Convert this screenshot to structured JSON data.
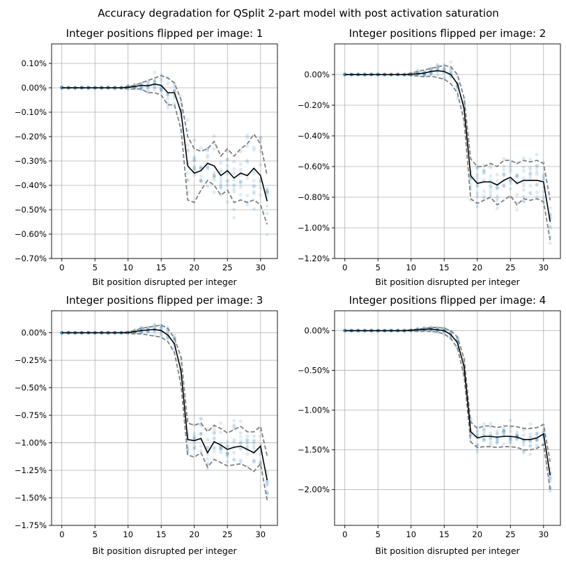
{
  "chart_data": {
    "suptitle": "Accuracy degradation for QSplit 2-part model with post activation saturation",
    "panels": [
      {
        "type": "line",
        "title": "Integer positions flipped per image: 1",
        "xlabel": "Bit position disrupted per integer",
        "ylabel": "",
        "xlim": [
          -1.55,
          32.55
        ],
        "ylim": [
          -0.7,
          0.18
        ],
        "xticks": [
          0,
          5,
          10,
          15,
          20,
          25,
          30
        ],
        "xtick_labels": [
          "0",
          "5",
          "10",
          "15",
          "20",
          "25",
          "30"
        ],
        "yticks": [
          0.1,
          0.0,
          -0.1,
          -0.2,
          -0.3,
          -0.4,
          -0.5,
          -0.6,
          -0.7
        ],
        "ytick_labels": [
          "0.10%",
          "0.00%",
          "−0.10%",
          "−0.20%",
          "−0.30%",
          "−0.40%",
          "−0.50%",
          "−0.60%",
          "−0.70%"
        ],
        "grid": true,
        "x": [
          0,
          1,
          2,
          3,
          4,
          5,
          6,
          7,
          8,
          9,
          10,
          11,
          12,
          13,
          14,
          15,
          16,
          17,
          18,
          19,
          20,
          21,
          22,
          23,
          24,
          25,
          26,
          27,
          28,
          29,
          30,
          31
        ],
        "mean": [
          0,
          0,
          0,
          0,
          0,
          0,
          0,
          0,
          0,
          0,
          0.002,
          0.005,
          0.01,
          0.008,
          0.015,
          0.01,
          -0.02,
          -0.02,
          -0.1,
          -0.32,
          -0.35,
          -0.34,
          -0.31,
          -0.32,
          -0.36,
          -0.34,
          -0.37,
          -0.35,
          -0.36,
          -0.33,
          -0.36,
          -0.465
        ],
        "upper": [
          0,
          0,
          0,
          0,
          0,
          0,
          0,
          0,
          0,
          0,
          0.005,
          0.01,
          0.02,
          0.03,
          0.04,
          0.05,
          0.04,
          0.02,
          -0.05,
          -0.2,
          -0.25,
          -0.26,
          -0.25,
          -0.22,
          -0.28,
          -0.25,
          -0.28,
          -0.25,
          -0.23,
          -0.19,
          -0.23,
          -0.36
        ],
        "lower": [
          0,
          0,
          0,
          0,
          0,
          0,
          0,
          0,
          0,
          0,
          -0.005,
          -0.005,
          -0.005,
          -0.02,
          -0.02,
          -0.03,
          -0.07,
          -0.07,
          -0.17,
          -0.46,
          -0.47,
          -0.42,
          -0.38,
          -0.4,
          -0.44,
          -0.42,
          -0.47,
          -0.46,
          -0.47,
          -0.46,
          -0.48,
          -0.56
        ]
      },
      {
        "type": "line",
        "title": "Integer positions flipped per image: 2",
        "xlabel": "Bit position disrupted per integer",
        "ylabel": "",
        "xlim": [
          -1.55,
          32.55
        ],
        "ylim": [
          -1.2,
          0.2
        ],
        "xticks": [
          0,
          5,
          10,
          15,
          20,
          25,
          30
        ],
        "xtick_labels": [
          "0",
          "5",
          "10",
          "15",
          "20",
          "25",
          "30"
        ],
        "yticks": [
          0.0,
          -0.2,
          -0.4,
          -0.6,
          -0.8,
          -1.0,
          -1.2
        ],
        "ytick_labels": [
          "0.00%",
          "−0.20%",
          "−0.40%",
          "−0.60%",
          "−0.80%",
          "−1.00%",
          "−1.20%"
        ],
        "grid": true,
        "x": [
          0,
          1,
          2,
          3,
          4,
          5,
          6,
          7,
          8,
          9,
          10,
          11,
          12,
          13,
          14,
          15,
          16,
          17,
          18,
          19,
          20,
          21,
          22,
          23,
          24,
          25,
          26,
          27,
          28,
          29,
          30,
          31
        ],
        "mean": [
          0,
          0,
          0,
          0,
          0,
          0,
          0,
          0,
          0,
          0,
          0.002,
          0.005,
          0.01,
          0.02,
          0.025,
          0.02,
          0.0,
          -0.06,
          -0.22,
          -0.66,
          -0.71,
          -0.7,
          -0.7,
          -0.72,
          -0.69,
          -0.67,
          -0.71,
          -0.69,
          -0.69,
          -0.69,
          -0.7,
          -0.96
        ],
        "upper": [
          0,
          0,
          0,
          0,
          0,
          0,
          0,
          0,
          0,
          0,
          0.01,
          0.02,
          0.03,
          0.04,
          0.05,
          0.06,
          0.05,
          0.0,
          -0.15,
          -0.55,
          -0.6,
          -0.6,
          -0.58,
          -0.6,
          -0.56,
          -0.56,
          -0.58,
          -0.56,
          -0.57,
          -0.56,
          -0.58,
          -0.82
        ],
        "lower": [
          0,
          0,
          0,
          0,
          0,
          0,
          0,
          0,
          0,
          0,
          -0.005,
          -0.01,
          -0.015,
          -0.01,
          -0.02,
          -0.03,
          -0.06,
          -0.12,
          -0.3,
          -0.81,
          -0.84,
          -0.82,
          -0.8,
          -0.85,
          -0.82,
          -0.79,
          -0.85,
          -0.81,
          -0.82,
          -0.81,
          -0.83,
          -1.08
        ]
      },
      {
        "type": "line",
        "title": "Integer positions flipped per image: 3",
        "xlabel": "Bit position disrupted per integer",
        "ylabel": "",
        "xlim": [
          -1.55,
          32.55
        ],
        "ylim": [
          -1.75,
          0.2
        ],
        "xticks": [
          0,
          5,
          10,
          15,
          20,
          25,
          30
        ],
        "xtick_labels": [
          "0",
          "5",
          "10",
          "15",
          "20",
          "25",
          "30"
        ],
        "yticks": [
          0.0,
          -0.25,
          -0.5,
          -0.75,
          -1.0,
          -1.25,
          -1.5,
          -1.75
        ],
        "ytick_labels": [
          "0.00%",
          "−0.25%",
          "−0.50%",
          "−0.75%",
          "−1.00%",
          "−1.25%",
          "−1.50%",
          "−1.75%"
        ],
        "grid": true,
        "x": [
          0,
          1,
          2,
          3,
          4,
          5,
          6,
          7,
          8,
          9,
          10,
          11,
          12,
          13,
          14,
          15,
          16,
          17,
          18,
          19,
          20,
          21,
          22,
          23,
          24,
          25,
          26,
          27,
          28,
          29,
          30,
          31
        ],
        "mean": [
          0,
          0,
          0,
          0,
          0,
          0,
          0,
          0,
          0,
          0,
          0.002,
          0.01,
          0.02,
          0.025,
          0.03,
          0.02,
          -0.02,
          -0.1,
          -0.35,
          -0.97,
          -0.98,
          -0.96,
          -1.09,
          -0.99,
          -1.02,
          -1.06,
          -1.04,
          -1.03,
          -1.06,
          -1.09,
          -1.03,
          -1.34
        ],
        "upper": [
          0,
          0,
          0,
          0,
          0,
          0,
          0,
          0,
          0,
          0,
          0.01,
          0.02,
          0.04,
          0.05,
          0.06,
          0.07,
          0.04,
          -0.05,
          -0.22,
          -0.82,
          -0.84,
          -0.82,
          -0.9,
          -0.84,
          -0.87,
          -0.91,
          -0.88,
          -0.85,
          -0.9,
          -0.9,
          -0.85,
          -1.12
        ],
        "lower": [
          0,
          0,
          0,
          0,
          0,
          0,
          0,
          0,
          0,
          0,
          -0.005,
          -0.01,
          -0.01,
          -0.02,
          -0.03,
          -0.04,
          -0.08,
          -0.18,
          -0.48,
          -1.11,
          -1.13,
          -1.09,
          -1.22,
          -1.15,
          -1.18,
          -1.21,
          -1.2,
          -1.19,
          -1.22,
          -1.26,
          -1.19,
          -1.52
        ]
      },
      {
        "type": "line",
        "title": "Integer positions flipped per image: 4",
        "xlabel": "Bit position disrupted per integer",
        "ylabel": "",
        "xlim": [
          -1.55,
          32.55
        ],
        "ylim": [
          -2.45,
          0.25
        ],
        "xticks": [
          0,
          5,
          10,
          15,
          20,
          25,
          30
        ],
        "xtick_labels": [
          "0",
          "5",
          "10",
          "15",
          "20",
          "25",
          "30"
        ],
        "yticks": [
          0.0,
          -0.5,
          -1.0,
          -1.5,
          -2.0
        ],
        "ytick_labels": [
          "0.00%",
          "−0.50%",
          "−1.00%",
          "−1.50%",
          "−2.00%"
        ],
        "grid": true,
        "x": [
          0,
          1,
          2,
          3,
          4,
          5,
          6,
          7,
          8,
          9,
          10,
          11,
          12,
          13,
          14,
          15,
          16,
          17,
          18,
          19,
          20,
          21,
          22,
          23,
          24,
          25,
          26,
          27,
          28,
          29,
          30,
          31
        ],
        "mean": [
          0,
          0,
          0,
          0,
          0,
          0,
          0,
          0,
          0,
          0,
          0.005,
          0.01,
          0.015,
          0.02,
          0.01,
          0.0,
          -0.05,
          -0.15,
          -0.45,
          -1.27,
          -1.35,
          -1.33,
          -1.33,
          -1.34,
          -1.33,
          -1.33,
          -1.34,
          -1.37,
          -1.37,
          -1.35,
          -1.3,
          -1.82
        ],
        "upper": [
          0,
          0,
          0,
          0,
          0,
          0,
          0,
          0,
          0,
          0,
          0.01,
          0.02,
          0.03,
          0.04,
          0.04,
          0.03,
          0.0,
          -0.08,
          -0.35,
          -1.15,
          -1.23,
          -1.2,
          -1.2,
          -1.22,
          -1.2,
          -1.2,
          -1.21,
          -1.23,
          -1.23,
          -1.22,
          -1.18,
          -1.65
        ],
        "lower": [
          0,
          0,
          0,
          0,
          0,
          0,
          0,
          0,
          0,
          0,
          -0.005,
          -0.01,
          -0.01,
          -0.01,
          -0.02,
          -0.04,
          -0.1,
          -0.22,
          -0.57,
          -1.4,
          -1.47,
          -1.46,
          -1.46,
          -1.47,
          -1.46,
          -1.46,
          -1.47,
          -1.5,
          -1.5,
          -1.48,
          -1.43,
          -2.0
        ]
      }
    ],
    "colors": {
      "mean": "#000000",
      "band": "#808080",
      "points": "#1f77b4",
      "grid": "#b0b0b0"
    }
  }
}
